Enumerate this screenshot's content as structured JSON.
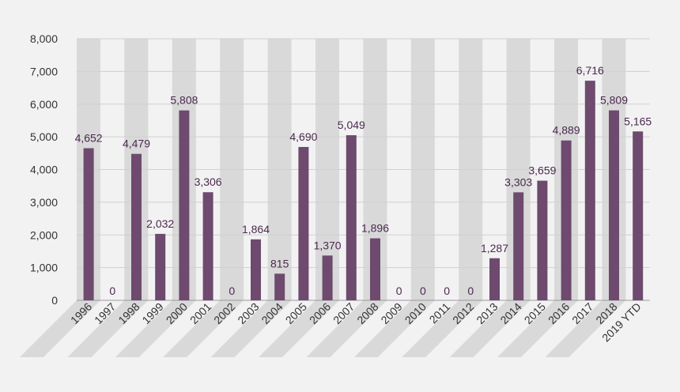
{
  "chart_data": {
    "type": "bar",
    "categories": [
      "1996",
      "1997",
      "1998",
      "1999",
      "2000",
      "2001",
      "2002",
      "2003",
      "2004",
      "2005",
      "2006",
      "2007",
      "2008",
      "2009",
      "2010",
      "2011",
      "2012",
      "2013",
      "2014",
      "2015",
      "2016",
      "2017",
      "2018",
      "2019 YTD"
    ],
    "values": [
      4652,
      0,
      4479,
      2032,
      5808,
      3306,
      0,
      1864,
      815,
      4690,
      1370,
      5049,
      1896,
      0,
      0,
      0,
      0,
      1287,
      3303,
      3659,
      4889,
      6716,
      5809,
      5165
    ],
    "value_labels": [
      "4,652",
      "0",
      "4,479",
      "2,032",
      "5,808",
      "3,306",
      "0",
      "1,864",
      "815",
      "4,690",
      "1,370",
      "5,049",
      "1,896",
      "0",
      "0",
      "0",
      "0",
      "1,287",
      "3,303",
      "3,659",
      "4,889",
      "6,716",
      "5,809",
      "5,165"
    ],
    "yticks": [
      0,
      1000,
      2000,
      3000,
      4000,
      5000,
      6000,
      7000,
      8000
    ],
    "ytick_labels": [
      "0",
      "1,000",
      "2,000",
      "3,000",
      "4,000",
      "5,000",
      "6,000",
      "7,000",
      "8,000"
    ],
    "ylim": [
      0,
      8000
    ],
    "title": "",
    "xlabel": "",
    "ylabel": "",
    "grid": true,
    "legend": "none",
    "colors": {
      "bar": "#6e4a6f",
      "band": "#d9d9d9",
      "grid": "#d0d0d0",
      "label": "#4a2a4e",
      "tick": "#333333",
      "background": "#f3f2f3"
    }
  }
}
